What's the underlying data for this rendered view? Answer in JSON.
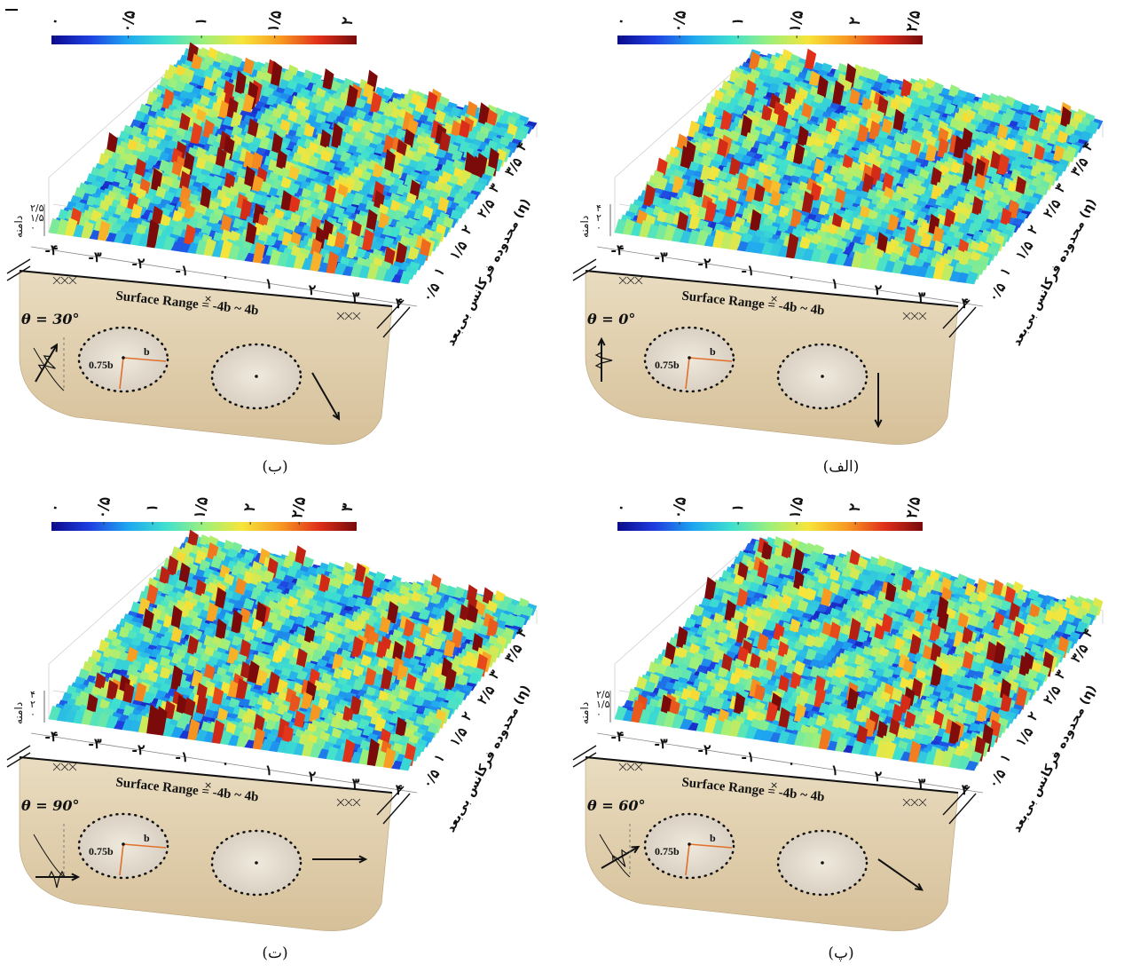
{
  "figure": {
    "colormap": [
      "#0a0a8c",
      "#1f3fe0",
      "#1fa6f0",
      "#3fe0d0",
      "#9ef07a",
      "#f7e53a",
      "#f79a22",
      "#e0301a",
      "#7a0a0a"
    ],
    "panels": [
      {
        "id": "a",
        "caption": "(الف)",
        "theta": "θ = 0°",
        "colorbar_ticks": [
          "۰",
          "۰/۵",
          "۱",
          "۱/۵",
          "۲",
          "۲/۵"
        ],
        "y_axis_label": "دامنه",
        "y_ticks": [
          "۴",
          "۲",
          "۰"
        ],
        "x_ticks": [
          "-۴",
          "-۳",
          "-۲",
          "-۱",
          "۰",
          "۱",
          "۲",
          "۳",
          "۴"
        ],
        "eta_ticks": [
          "۰/۵",
          "۱",
          "۱/۵",
          "۲",
          "۲/۵",
          "۳",
          "۳/۵",
          "۴"
        ],
        "eta_label": "محدوده فرکانس بی‌بعد (η)",
        "surface_range": "Surface Range = -4b ~ 4b",
        "ellipse_b": "b",
        "ellipse_075b": "0.75b"
      },
      {
        "id": "b",
        "caption": "(ب)",
        "theta": "θ = 30°",
        "colorbar_ticks": [
          "۰",
          "۰/۵",
          "۱",
          "۱/۵",
          "۲"
        ],
        "y_axis_label": "دامنه",
        "y_ticks": [
          "۲/۵",
          "۱/۵",
          "۰"
        ],
        "x_ticks": [
          "-۴",
          "-۳",
          "-۲",
          "-۱",
          "۰",
          "۱",
          "۲",
          "۳",
          "۴"
        ],
        "eta_ticks": [
          "۰/۵",
          "۱",
          "۱/۵",
          "۲",
          "۲/۵",
          "۳",
          "۳/۵",
          "۴"
        ],
        "eta_label": "محدوده فرکانس بی‌بعد (η)",
        "surface_range": "Surface Range = -4b ~ 4b",
        "ellipse_b": "b",
        "ellipse_075b": "0.75b"
      },
      {
        "id": "c",
        "caption": "(پ)",
        "theta": "θ = 60°",
        "colorbar_ticks": [
          "۰",
          "۰/۵",
          "۱",
          "۱/۵",
          "۲",
          "۲/۵"
        ],
        "y_axis_label": "دامنه",
        "y_ticks": [
          "۲/۵",
          "۱/۵",
          "۰"
        ],
        "x_ticks": [
          "-۴",
          "-۳",
          "-۲",
          "-۱",
          "۰",
          "۱",
          "۲",
          "۳",
          "۴"
        ],
        "eta_ticks": [
          "۰/۵",
          "۱",
          "۱/۵",
          "۲",
          "۲/۵",
          "۳",
          "۳/۵",
          "۴"
        ],
        "eta_label": "محدوده فرکانس بی‌بعد (η)",
        "surface_range": "Surface Range = -4b ~ 4b",
        "ellipse_b": "b",
        "ellipse_075b": "0.75b"
      },
      {
        "id": "d",
        "caption": "(ت)",
        "theta": "θ = 90°",
        "colorbar_ticks": [
          "۰",
          "۰/۵",
          "۱",
          "۱/۵",
          "۲",
          "۲/۵",
          "۳"
        ],
        "y_axis_label": "دامنه",
        "y_ticks": [
          "۴",
          "۲",
          "۰"
        ],
        "x_ticks": [
          "-۴",
          "-۳",
          "-۲",
          "-۱",
          "۰",
          "۱",
          "۲",
          "۳",
          "۴"
        ],
        "eta_ticks": [
          "۰/۵",
          "۱",
          "۱/۵",
          "۲",
          "۲/۵",
          "۳",
          "۳/۵",
          "۴"
        ],
        "eta_label": "محدوده فرکانس بی‌بعد (η)",
        "surface_range": "Surface Range = -4b ~ 4b",
        "ellipse_b": "b",
        "ellipse_075b": "0.75b"
      }
    ]
  }
}
